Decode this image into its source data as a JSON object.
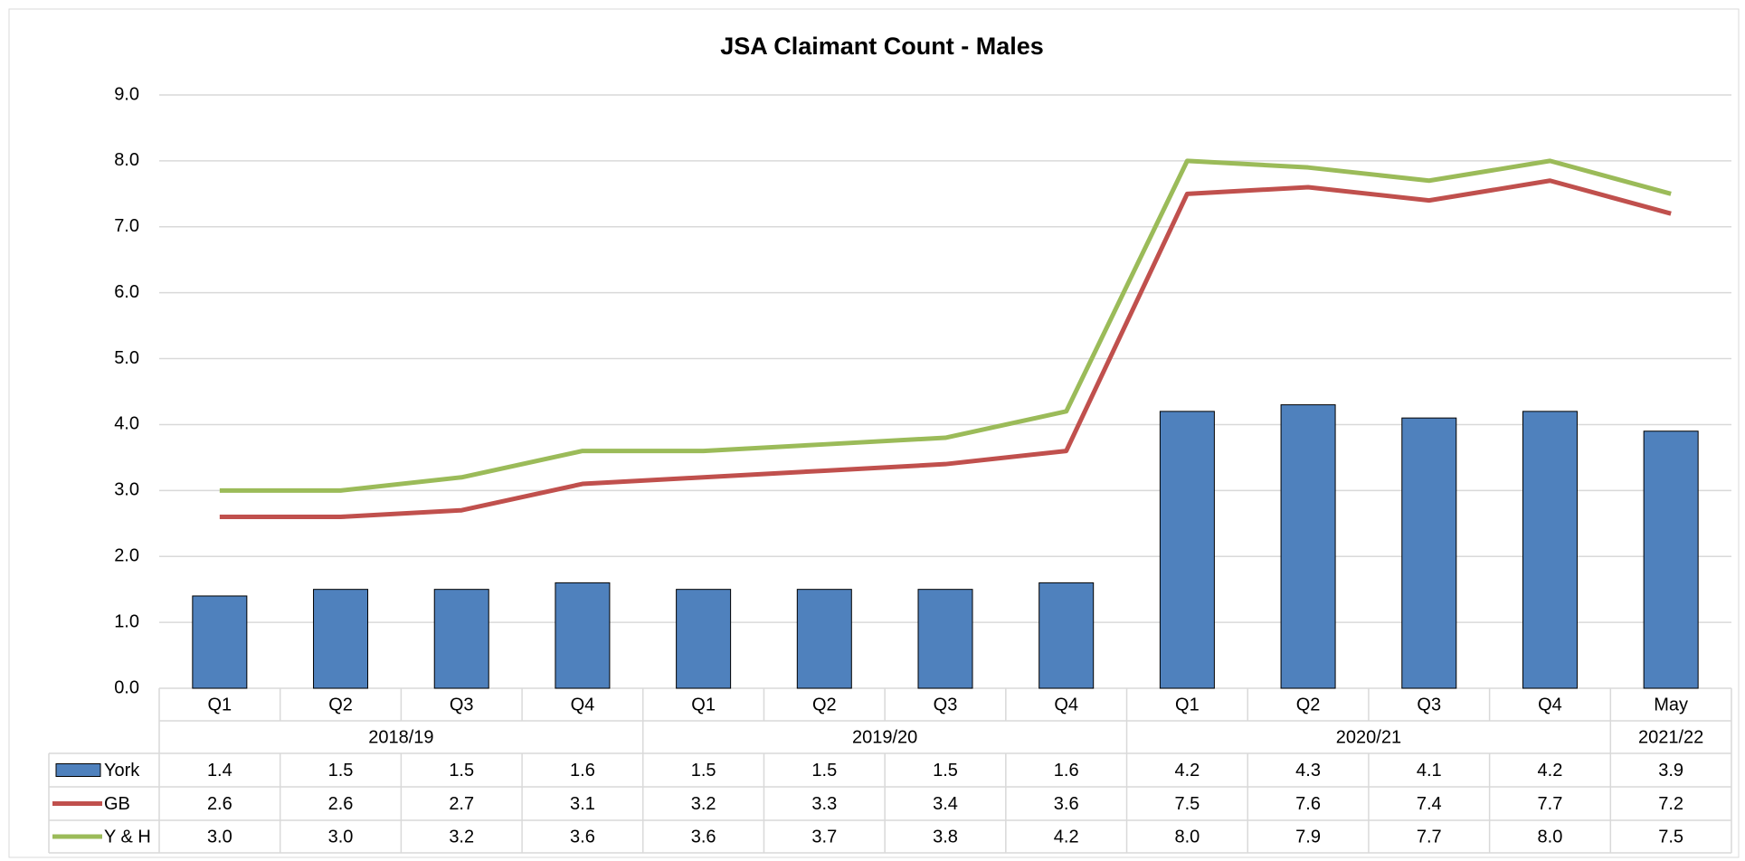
{
  "chart_data": {
    "type": "bar-line",
    "title": "JSA Claimant Count - Males",
    "groups": [
      {
        "name": "2018/19",
        "categories": [
          "Q1",
          "Q2",
          "Q3",
          "Q4"
        ]
      },
      {
        "name": "2019/20",
        "categories": [
          "Q1",
          "Q2",
          "Q3",
          "Q4"
        ]
      },
      {
        "name": "2020/21",
        "categories": [
          "Q1",
          "Q2",
          "Q3",
          "Q4"
        ]
      },
      {
        "name": "2021/22",
        "categories": [
          "May"
        ]
      }
    ],
    "series": [
      {
        "name": "York",
        "type": "bar",
        "color": "#4f81bd",
        "values": [
          1.4,
          1.5,
          1.5,
          1.6,
          1.5,
          1.5,
          1.5,
          1.6,
          4.2,
          4.3,
          4.1,
          4.2,
          3.9
        ],
        "value_labels": [
          "1.4",
          "1.5",
          "1.5",
          "1.6",
          "1.5",
          "1.5",
          "1.5",
          "1.6",
          "4.2",
          "4.3",
          "4.1",
          "4.2",
          "3.9"
        ]
      },
      {
        "name": "GB",
        "type": "line",
        "color": "#c0504d",
        "values": [
          2.6,
          2.6,
          2.7,
          3.1,
          3.2,
          3.3,
          3.4,
          3.6,
          7.5,
          7.6,
          7.4,
          7.7,
          7.2
        ],
        "value_labels": [
          "2.6",
          "2.6",
          "2.7",
          "3.1",
          "3.2",
          "3.3",
          "3.4",
          "3.6",
          "7.5",
          "7.6",
          "7.4",
          "7.7",
          "7.2"
        ]
      },
      {
        "name": "Y & H",
        "type": "line",
        "color": "#9bbb59",
        "values": [
          3.0,
          3.0,
          3.2,
          3.6,
          3.6,
          3.7,
          3.8,
          4.2,
          8.0,
          7.9,
          7.7,
          8.0,
          7.5
        ],
        "value_labels": [
          "3.0",
          "3.0",
          "3.2",
          "3.6",
          "3.6",
          "3.7",
          "3.8",
          "4.2",
          "8.0",
          "7.9",
          "7.7",
          "8.0",
          "7.5"
        ]
      }
    ],
    "ylim": [
      0,
      9
    ],
    "yticks": [
      {
        "value": 0,
        "label": "0.0"
      },
      {
        "value": 1,
        "label": "1.0"
      },
      {
        "value": 2,
        "label": "2.0"
      },
      {
        "value": 3,
        "label": "3.0"
      },
      {
        "value": 4,
        "label": "4.0"
      },
      {
        "value": 5,
        "label": "5.0"
      },
      {
        "value": 6,
        "label": "6.0"
      },
      {
        "value": 7,
        "label": "7.0"
      },
      {
        "value": 8,
        "label": "8.0"
      },
      {
        "value": 9,
        "label": "9.0"
      }
    ],
    "grid": true
  }
}
